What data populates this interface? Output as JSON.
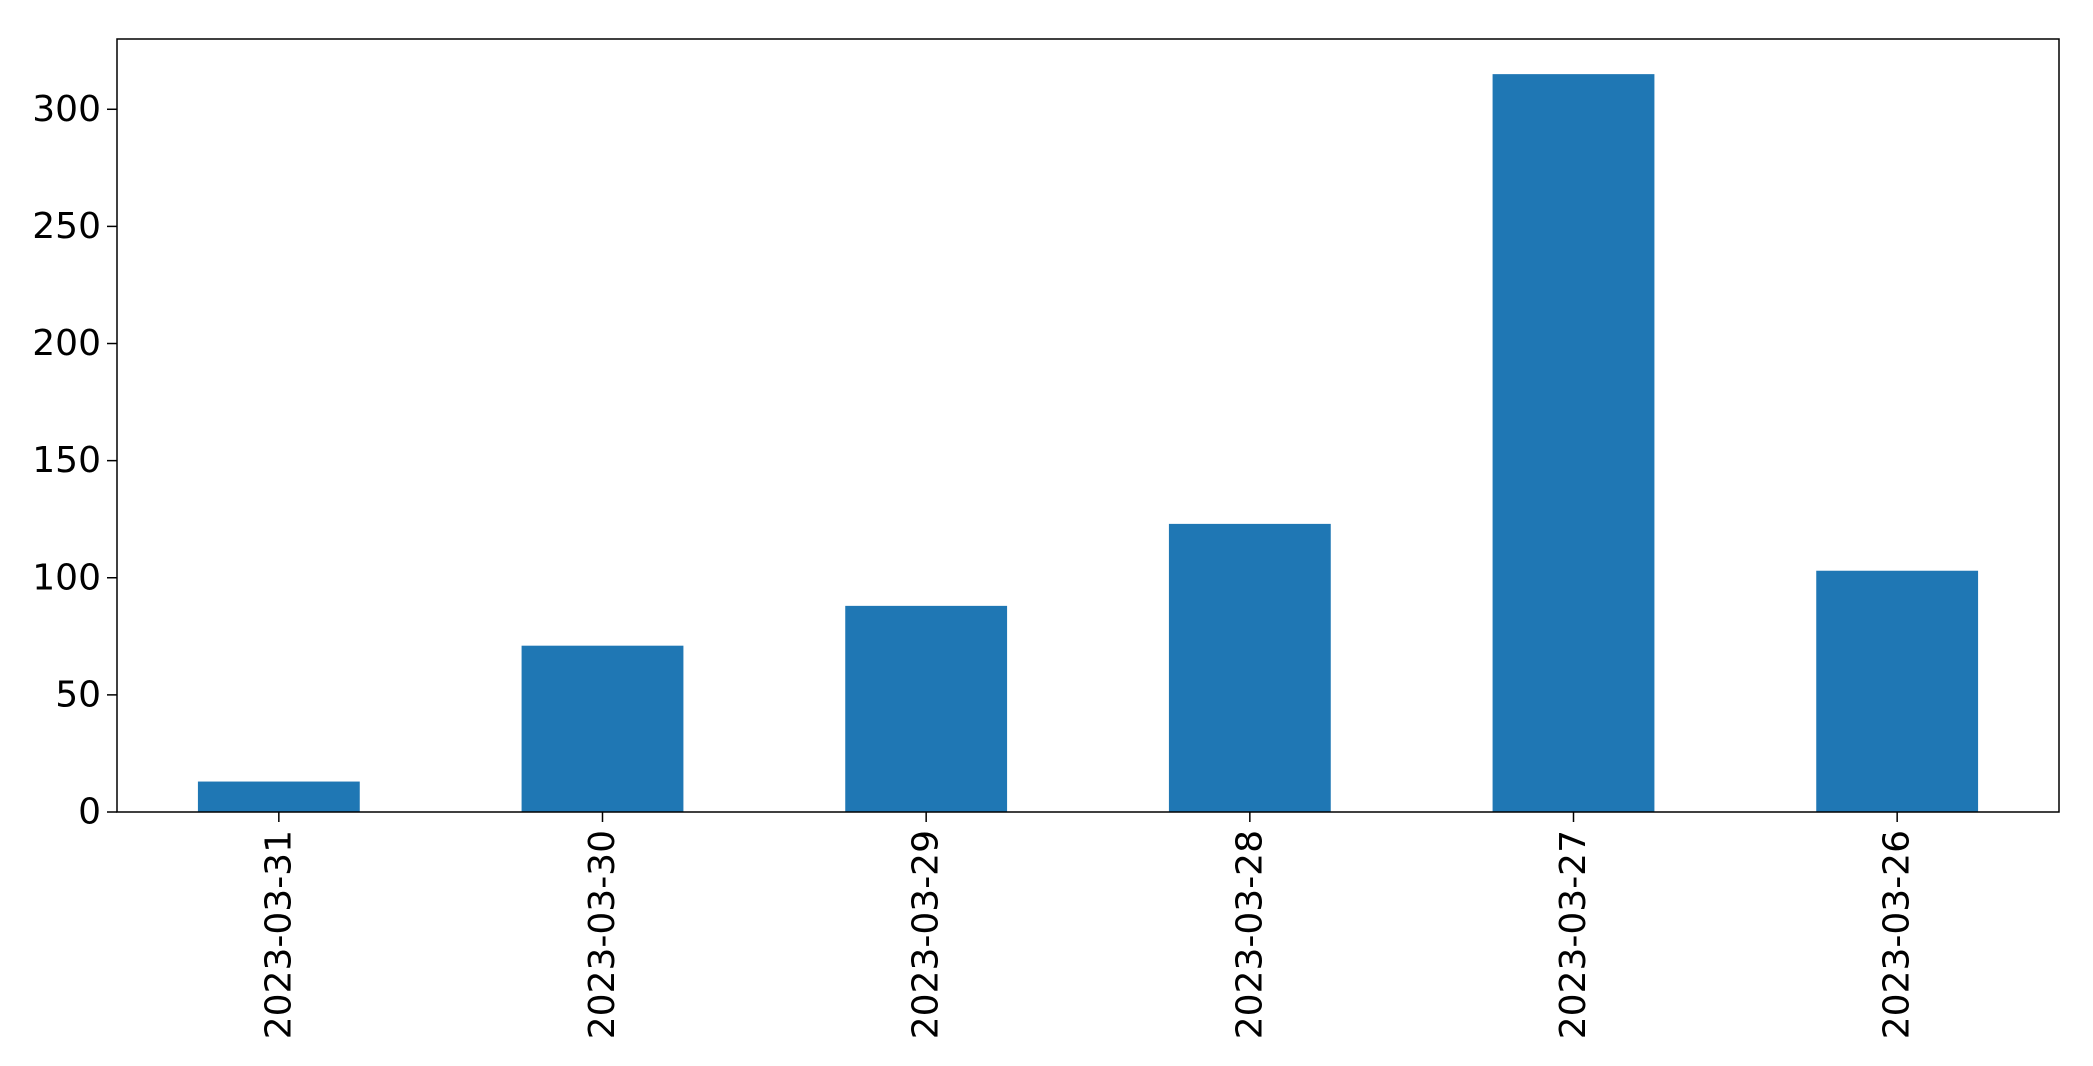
{
  "chart_data": {
    "type": "bar",
    "categories": [
      "2023-03-31",
      "2023-03-30",
      "2023-03-29",
      "2023-03-28",
      "2023-03-27",
      "2023-03-26"
    ],
    "values": [
      13,
      71,
      88,
      123,
      315,
      103
    ],
    "title": "",
    "xlabel": "",
    "ylabel": "",
    "ylim": [
      0,
      330
    ],
    "yticks": [
      0,
      50,
      100,
      150,
      200,
      250,
      300
    ],
    "grid": false,
    "legend": "none",
    "bar_color": "#1f77b4"
  }
}
